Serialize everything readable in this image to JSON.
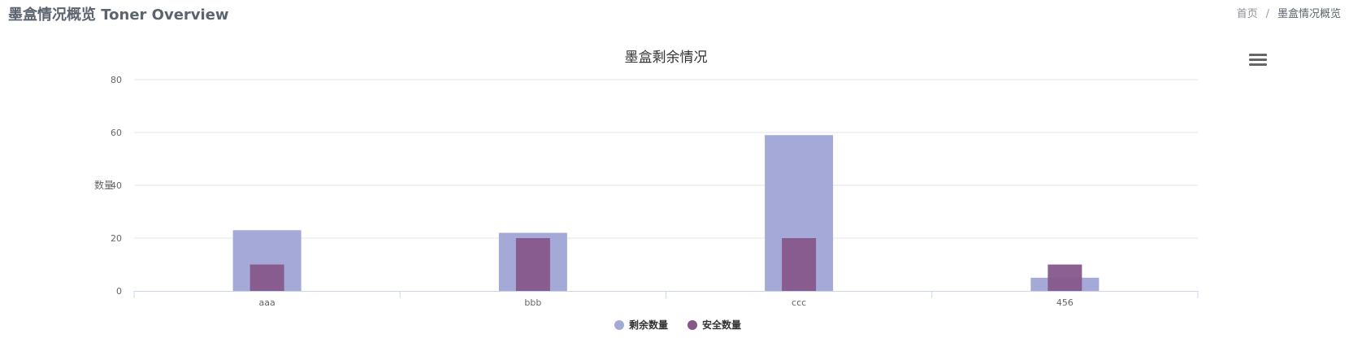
{
  "header": {
    "title": "墨盒情况概览 Toner Overview",
    "breadcrumb": [
      {
        "label": "首页"
      },
      {
        "label": "墨盒情况概览"
      }
    ],
    "separator": "/"
  },
  "chart_menu_icon": "hamburger-menu-icon",
  "chart_data": {
    "type": "bar",
    "title": "墨盒剩余情况",
    "xlabel": "",
    "ylabel": "数量",
    "categories": [
      "aaa",
      "bbb",
      "ccc",
      "456"
    ],
    "ylim": [
      0,
      80
    ],
    "yticks": [
      0,
      20,
      40,
      60,
      80
    ],
    "grid": true,
    "legend_position": "bottom-center",
    "series": [
      {
        "name": "剩余数量",
        "values": [
          23,
          22,
          59,
          5
        ],
        "color": "#a5a9d8"
      },
      {
        "name": "安全数量",
        "values": [
          10,
          20,
          20,
          10
        ],
        "color": "#87578c"
      }
    ]
  }
}
